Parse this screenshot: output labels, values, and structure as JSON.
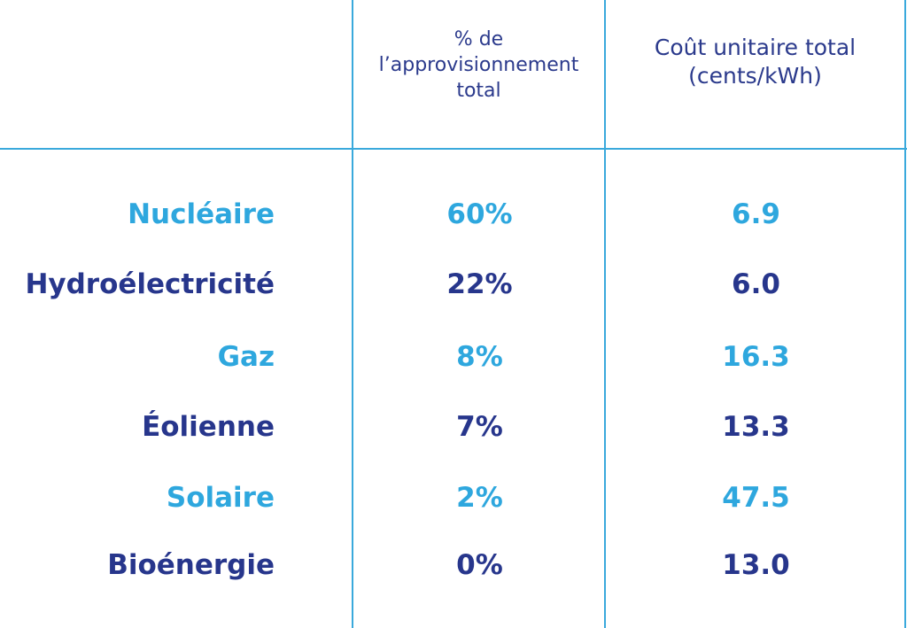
{
  "header": {
    "columns": [
      [
        "% de",
        "l’approvisionnement",
        "total"
      ],
      [
        "Coût unitaire total",
        "(cents/kWh)"
      ]
    ]
  },
  "table": {
    "rows": [
      [
        "Nucléaire",
        "60%",
        "6.9"
      ],
      [
        "Hydroélectricité",
        "22%",
        "6.0"
      ],
      [
        "Gaz",
        "8%",
        "16.3"
      ],
      [
        "Éolienne",
        "7%",
        "13.3"
      ],
      [
        "Solaire",
        "2%",
        "47.5"
      ],
      [
        "Bioénergie",
        "0%",
        "13.0"
      ]
    ]
  }
}
